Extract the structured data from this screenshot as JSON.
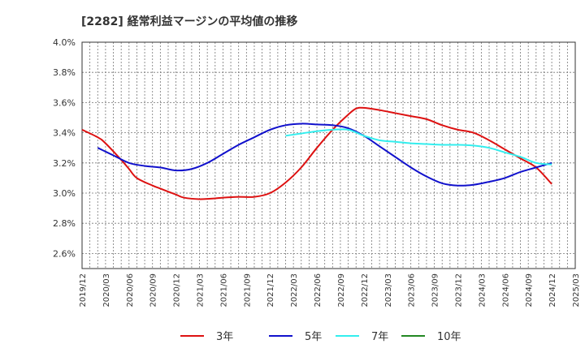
{
  "chart_data": {
    "type": "line",
    "title": "[2282]  経常利益マージンの平均値の推移",
    "xlabel": "",
    "ylabel": "",
    "y_unit": "%",
    "ylim": [
      2.5,
      4.0
    ],
    "y_ticks": [
      2.6,
      2.8,
      3.0,
      3.2,
      3.4,
      3.6,
      3.8,
      4.0
    ],
    "y_tick_labels": [
      "2.6%",
      "2.8%",
      "3.0%",
      "3.2%",
      "3.4%",
      "3.6%",
      "3.8%",
      "4.0%"
    ],
    "x_ticks": [
      "2019/12",
      "2020/03",
      "2020/06",
      "2020/09",
      "2020/12",
      "2021/03",
      "2021/06",
      "2021/09",
      "2021/12",
      "2022/03",
      "2022/06",
      "2022/09",
      "2022/12",
      "2023/03",
      "2023/06",
      "2023/09",
      "2023/12",
      "2024/03",
      "2024/06",
      "2024/09",
      "2024/12",
      "2025/03"
    ],
    "grid": true,
    "legend_position": "bottom",
    "series": [
      {
        "name": "3年",
        "color": "#dd1111",
        "points": [
          [
            "2019/12",
            3.42
          ],
          [
            "2020/02",
            3.37
          ],
          [
            "2020/03",
            3.33
          ],
          [
            "2020/05",
            3.22
          ],
          [
            "2020/06",
            3.16
          ],
          [
            "2020/07",
            3.1
          ],
          [
            "2020/09",
            3.05
          ],
          [
            "2020/10",
            3.03
          ],
          [
            "2020/12",
            2.99
          ],
          [
            "2021/01",
            2.97
          ],
          [
            "2021/03",
            2.96
          ],
          [
            "2021/05",
            2.965
          ],
          [
            "2021/06",
            2.97
          ],
          [
            "2021/08",
            2.975
          ],
          [
            "2021/10",
            2.975
          ],
          [
            "2021/12",
            3.0
          ],
          [
            "2022/02",
            3.07
          ],
          [
            "2022/04",
            3.17
          ],
          [
            "2022/06",
            3.3
          ],
          [
            "2022/08",
            3.42
          ],
          [
            "2022/10",
            3.52
          ],
          [
            "2022/11",
            3.56
          ],
          [
            "2022/12",
            3.565
          ],
          [
            "2023/02",
            3.55
          ],
          [
            "2023/04",
            3.53
          ],
          [
            "2023/06",
            3.51
          ],
          [
            "2023/08",
            3.49
          ],
          [
            "2023/10",
            3.45
          ],
          [
            "2023/12",
            3.42
          ],
          [
            "2024/02",
            3.4
          ],
          [
            "2024/04",
            3.35
          ],
          [
            "2024/06",
            3.29
          ],
          [
            "2024/08",
            3.23
          ],
          [
            "2024/10",
            3.17
          ],
          [
            "2024/12",
            3.06
          ]
        ]
      },
      {
        "name": "5年",
        "color": "#1111cc",
        "points": [
          [
            "2020/02",
            3.3
          ],
          [
            "2020/04",
            3.25
          ],
          [
            "2020/06",
            3.2
          ],
          [
            "2020/08",
            3.18
          ],
          [
            "2020/10",
            3.17
          ],
          [
            "2020/12",
            3.15
          ],
          [
            "2021/02",
            3.16
          ],
          [
            "2021/04",
            3.2
          ],
          [
            "2021/06",
            3.26
          ],
          [
            "2021/08",
            3.32
          ],
          [
            "2021/10",
            3.37
          ],
          [
            "2021/12",
            3.42
          ],
          [
            "2022/02",
            3.45
          ],
          [
            "2022/04",
            3.46
          ],
          [
            "2022/06",
            3.455
          ],
          [
            "2022/08",
            3.45
          ],
          [
            "2022/10",
            3.43
          ],
          [
            "2022/12",
            3.38
          ],
          [
            "2023/02",
            3.31
          ],
          [
            "2023/04",
            3.24
          ],
          [
            "2023/06",
            3.17
          ],
          [
            "2023/08",
            3.11
          ],
          [
            "2023/10",
            3.065
          ],
          [
            "2023/12",
            3.05
          ],
          [
            "2024/02",
            3.055
          ],
          [
            "2024/04",
            3.075
          ],
          [
            "2024/06",
            3.1
          ],
          [
            "2024/08",
            3.14
          ],
          [
            "2024/10",
            3.17
          ],
          [
            "2024/12",
            3.2
          ]
        ]
      },
      {
        "name": "7年",
        "color": "#33eeee",
        "points": [
          [
            "2022/02",
            3.38
          ],
          [
            "2022/04",
            3.395
          ],
          [
            "2022/06",
            3.41
          ],
          [
            "2022/08",
            3.42
          ],
          [
            "2022/10",
            3.42
          ],
          [
            "2022/12",
            3.38
          ],
          [
            "2023/02",
            3.35
          ],
          [
            "2023/04",
            3.34
          ],
          [
            "2023/06",
            3.33
          ],
          [
            "2023/08",
            3.325
          ],
          [
            "2023/10",
            3.32
          ],
          [
            "2023/12",
            3.32
          ],
          [
            "2024/02",
            3.315
          ],
          [
            "2024/04",
            3.3
          ],
          [
            "2024/06",
            3.27
          ],
          [
            "2024/08",
            3.24
          ],
          [
            "2024/10",
            3.2
          ],
          [
            "2024/12",
            3.19
          ]
        ]
      },
      {
        "name": "10年",
        "color": "#228822",
        "points": []
      }
    ]
  }
}
